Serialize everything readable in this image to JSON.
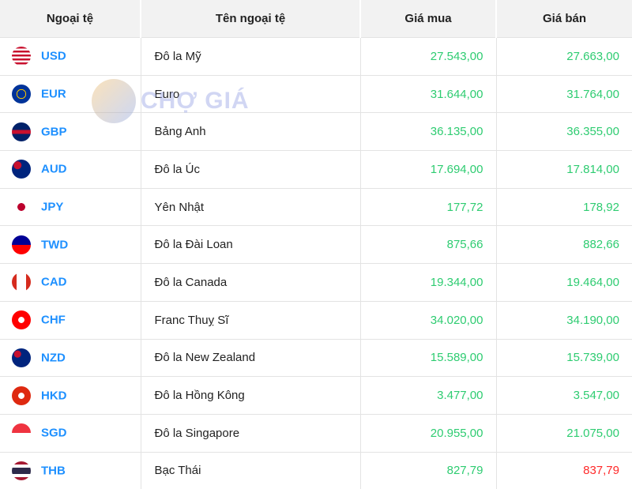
{
  "headers": [
    "Ngoại tệ",
    "Tên ngoại tệ",
    "Giá mua",
    "Giá bán"
  ],
  "watermark": "CHỢ GIÁ",
  "colors": {
    "code": "#1e90ff",
    "up": "#2ecc71",
    "down": "#ff2a2a"
  },
  "rows": [
    {
      "code": "USD",
      "name": "Đô la Mỹ",
      "buy": "27.543,00",
      "sell": "27.663,00",
      "flag": "us-flag-icon",
      "sell_color": "up"
    },
    {
      "code": "EUR",
      "name": "Euro",
      "buy": "31.644,00",
      "sell": "31.764,00",
      "flag": "eu-flag-icon",
      "sell_color": "up"
    },
    {
      "code": "GBP",
      "name": "Bảng Anh",
      "buy": "36.135,00",
      "sell": "36.355,00",
      "flag": "uk-flag-icon",
      "sell_color": "up"
    },
    {
      "code": "AUD",
      "name": "Đô la Úc",
      "buy": "17.694,00",
      "sell": "17.814,00",
      "flag": "au-flag-icon",
      "sell_color": "up"
    },
    {
      "code": "JPY",
      "name": "Yên Nhật",
      "buy": "177,72",
      "sell": "178,92",
      "flag": "jp-flag-icon",
      "sell_color": "up"
    },
    {
      "code": "TWD",
      "name": "Đô la Đài Loan",
      "buy": "875,66",
      "sell": "882,66",
      "flag": "tw-flag-icon",
      "sell_color": "up"
    },
    {
      "code": "CAD",
      "name": "Đô la Canada",
      "buy": "19.344,00",
      "sell": "19.464,00",
      "flag": "ca-flag-icon",
      "sell_color": "up"
    },
    {
      "code": "CHF",
      "name": "Franc Thuỵ Sĩ",
      "buy": "34.020,00",
      "sell": "34.190,00",
      "flag": "ch-flag-icon",
      "sell_color": "up"
    },
    {
      "code": "NZD",
      "name": "Đô la New Zealand",
      "buy": "15.589,00",
      "sell": "15.739,00",
      "flag": "nz-flag-icon",
      "sell_color": "up"
    },
    {
      "code": "HKD",
      "name": "Đô la Hồng Kông",
      "buy": "3.477,00",
      "sell": "3.547,00",
      "flag": "hk-flag-icon",
      "sell_color": "up"
    },
    {
      "code": "SGD",
      "name": "Đô la Singapore",
      "buy": "20.955,00",
      "sell": "21.075,00",
      "flag": "sg-flag-icon",
      "sell_color": "up"
    },
    {
      "code": "THB",
      "name": "Bạc Thái",
      "buy": "827,79",
      "sell": "837,79",
      "flag": "th-flag-icon",
      "sell_color": "down"
    }
  ]
}
